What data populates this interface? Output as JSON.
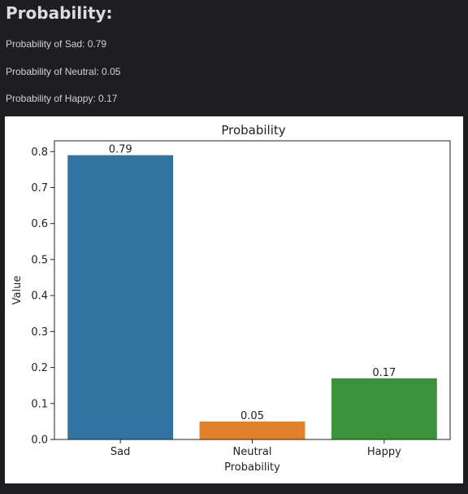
{
  "page": {
    "heading": "Probability:",
    "lines": [
      "Probability of Sad: 0.79",
      "Probability of Neutral: 0.05",
      "Probability of Happy: 0.17"
    ]
  },
  "chart_data": {
    "type": "bar",
    "title": "Probability",
    "xlabel": "Probability",
    "ylabel": "Value",
    "categories": [
      "Sad",
      "Neutral",
      "Happy"
    ],
    "values": [
      0.79,
      0.05,
      0.17
    ],
    "value_labels": [
      "0.79",
      "0.05",
      "0.17"
    ],
    "colors": [
      "#3274a1",
      "#e1812c",
      "#3a923a"
    ],
    "ylim": [
      0,
      0.83
    ],
    "yticks": [
      0.0,
      0.1,
      0.2,
      0.3,
      0.4,
      0.5,
      0.6,
      0.7,
      0.8
    ],
    "ytick_labels": [
      "0.0",
      "0.1",
      "0.2",
      "0.3",
      "0.4",
      "0.5",
      "0.6",
      "0.7",
      "0.8"
    ],
    "grid": false,
    "legend": "none"
  }
}
